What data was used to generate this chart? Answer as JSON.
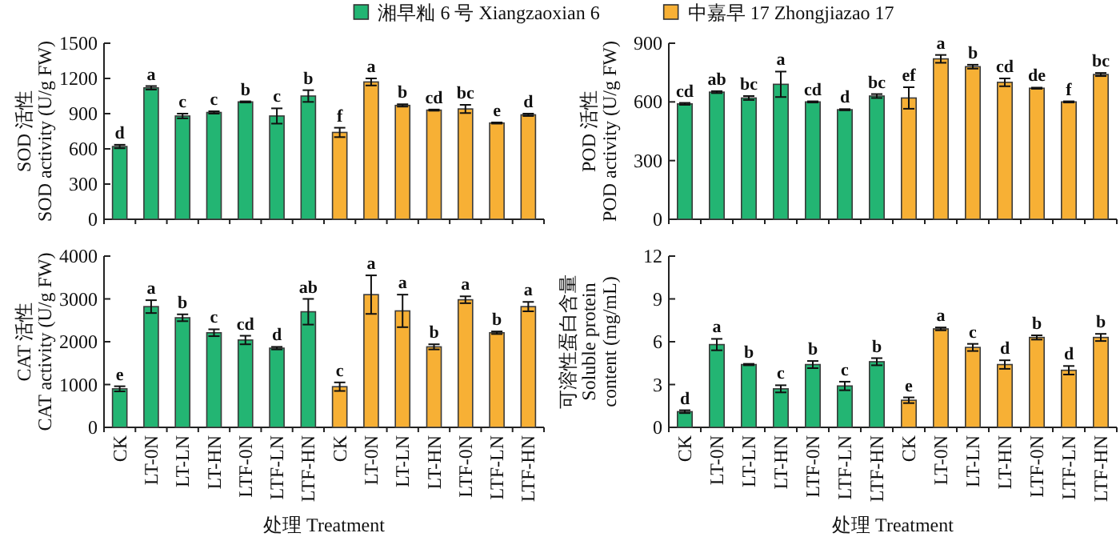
{
  "chart_data": [
    {
      "type": "bar",
      "ylabel": "SOD 活性\nSOD activity (U/g FW)",
      "legend": "top",
      "tick_labels": "y",
      "ylim": [
        0,
        1500
      ],
      "yticks": [
        0,
        300,
        600,
        900,
        1200,
        1500
      ],
      "categories": [
        null,
        null,
        null,
        null,
        null,
        null,
        null,
        null,
        null,
        null,
        null,
        null,
        null,
        null
      ],
      "series": [
        {
          "name": "湘早籼 6 号 Xiangzaoxian 6",
          "color": "#23b573",
          "values": [
            620,
            1120,
            880,
            910,
            1000,
            880,
            1050,
            null,
            null,
            null,
            null,
            null,
            null,
            null
          ],
          "errors": [
            15,
            15,
            20,
            10,
            5,
            65,
            50,
            null,
            null,
            null,
            null,
            null,
            null,
            null
          ],
          "value_labels": [
            "d",
            "a",
            "c",
            "c",
            "b",
            "c",
            "b",
            null,
            null,
            null,
            null,
            null,
            null,
            null
          ]
        },
        {
          "name": "中嘉早 17 Zhongjiazao 17",
          "color": "#f7b035",
          "values": [
            null,
            null,
            null,
            null,
            null,
            null,
            null,
            740,
            1170,
            970,
            930,
            940,
            820,
            890
          ],
          "errors": [
            null,
            null,
            null,
            null,
            null,
            null,
            null,
            40,
            30,
            10,
            5,
            35,
            5,
            10
          ],
          "value_labels": [
            null,
            null,
            null,
            null,
            null,
            null,
            null,
            "f",
            "a",
            "b",
            "cd",
            "bc",
            "e",
            "d"
          ]
        }
      ]
    },
    {
      "type": "bar",
      "ylabel": "POD 活性\nPOD activity (U/g FW)",
      "tick_labels": "y",
      "ylim": [
        0,
        900
      ],
      "yticks": [
        0,
        300,
        600,
        900
      ],
      "categories": [
        null,
        null,
        null,
        null,
        null,
        null,
        null,
        null,
        null,
        null,
        null,
        null,
        null,
        null
      ],
      "series": [
        {
          "color": "#23b573",
          "values": [
            590,
            650,
            620,
            690,
            600,
            560,
            630,
            null,
            null,
            null,
            null,
            null,
            null,
            null
          ],
          "errors": [
            5,
            5,
            10,
            65,
            3,
            3,
            10,
            null,
            null,
            null,
            null,
            null,
            null,
            null
          ],
          "value_labels": [
            "cd",
            "ab",
            "bc",
            "a",
            "cd",
            "d",
            "bc",
            null,
            null,
            null,
            null,
            null,
            null,
            null
          ]
        },
        {
          "color": "#f7b035",
          "values": [
            null,
            null,
            null,
            null,
            null,
            null,
            null,
            620,
            820,
            780,
            700,
            670,
            600,
            740
          ],
          "errors": [
            null,
            null,
            null,
            null,
            null,
            null,
            null,
            55,
            20,
            10,
            20,
            3,
            3,
            8
          ],
          "value_labels": [
            null,
            null,
            null,
            null,
            null,
            null,
            null,
            "ef",
            "a",
            "b",
            "cd",
            "de",
            "f",
            "bc"
          ]
        }
      ]
    },
    {
      "type": "bar",
      "ylabel": "CAT 活性\nCAT activity (U/g FW)",
      "xlabel": "处理 Treatment",
      "ylim": [
        0,
        4000
      ],
      "yticks": [
        0,
        1000,
        2000,
        3000,
        4000
      ],
      "categories": [
        "CK",
        "LT-0N",
        "LT-LN",
        "LT-HN",
        "LTF-0N",
        "LTF-LN",
        "LTF-HN",
        "CK",
        "LT-0N",
        "LT-LN",
        "LT-HN",
        "LTF-0N",
        "LTF-LN",
        "LTF-HN"
      ],
      "series": [
        {
          "color": "#23b573",
          "values": [
            900,
            2820,
            2560,
            2210,
            2040,
            1850,
            2700,
            null,
            null,
            null,
            null,
            null,
            null,
            null
          ],
          "errors": [
            60,
            150,
            80,
            80,
            100,
            30,
            300,
            null,
            null,
            null,
            null,
            null,
            null,
            null
          ],
          "value_labels": [
            "e",
            "a",
            "b",
            "c",
            "cd",
            "d",
            "ab",
            null,
            null,
            null,
            null,
            null,
            null,
            null
          ]
        },
        {
          "color": "#f7b035",
          "values": [
            null,
            null,
            null,
            null,
            null,
            null,
            null,
            950,
            3100,
            2720,
            1880,
            2980,
            2210,
            2820
          ],
          "errors": [
            null,
            null,
            null,
            null,
            null,
            null,
            null,
            100,
            450,
            380,
            60,
            80,
            30,
            110
          ],
          "value_labels": [
            null,
            null,
            null,
            null,
            null,
            null,
            null,
            "c",
            "a",
            "a",
            "b",
            "a",
            "b",
            "a"
          ]
        }
      ]
    },
    {
      "type": "bar",
      "ylabel": "可溶性蛋白含量\nSoluble protein\ncontent (mg/mL)",
      "xlabel": "处理 Treatment",
      "ylim": [
        0,
        12
      ],
      "yticks": [
        0,
        3,
        6,
        9,
        12
      ],
      "categories": [
        "CK",
        "LT-0N",
        "LT-LN",
        "LT-HN",
        "LTF-0N",
        "LTF-LN",
        "LTF-HN",
        "CK",
        "LT-0N",
        "LT-LN",
        "LT-HN",
        "LTF-0N",
        "LTF-LN",
        "LTF-HN"
      ],
      "series": [
        {
          "color": "#23b573",
          "values": [
            1.1,
            5.8,
            4.4,
            2.7,
            4.4,
            2.9,
            4.6,
            null,
            null,
            null,
            null,
            null,
            null,
            null
          ],
          "errors": [
            0.1,
            0.4,
            0.05,
            0.25,
            0.25,
            0.3,
            0.25,
            null,
            null,
            null,
            null,
            null,
            null,
            null
          ],
          "value_labels": [
            "d",
            "a",
            "b",
            "c",
            "b",
            "c",
            "b",
            null,
            null,
            null,
            null,
            null,
            null,
            null
          ]
        },
        {
          "color": "#f7b035",
          "values": [
            null,
            null,
            null,
            null,
            null,
            null,
            null,
            1.9,
            6.9,
            5.6,
            4.4,
            6.3,
            4.0,
            6.3
          ],
          "errors": [
            null,
            null,
            null,
            null,
            null,
            null,
            null,
            0.2,
            0.1,
            0.25,
            0.3,
            0.15,
            0.3,
            0.25
          ],
          "value_labels": [
            null,
            null,
            null,
            null,
            null,
            null,
            null,
            "e",
            "a",
            "c",
            "d",
            "b",
            "d",
            "b"
          ]
        }
      ]
    }
  ]
}
